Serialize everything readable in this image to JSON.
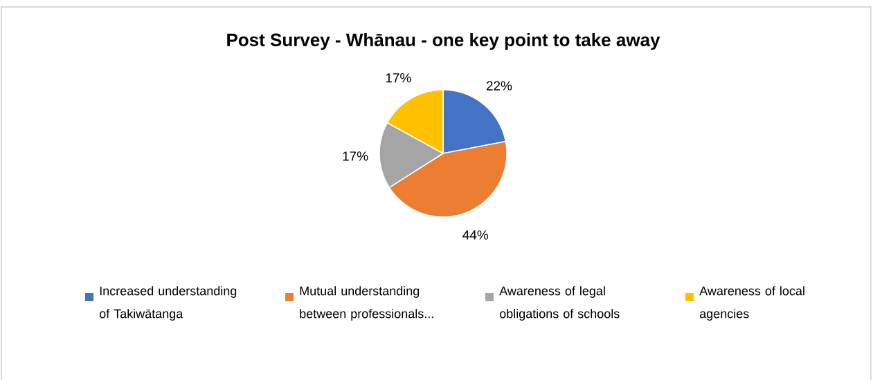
{
  "chart_data": {
    "type": "pie",
    "title": "Post Survey - Whānau - one key point to take away",
    "categories": [
      "Increased understanding of Takiwātanga",
      "Mutual understanding between professionals...",
      "Awareness of legal obligations of schools",
      "Awareness of local agencies"
    ],
    "values": [
      22,
      44,
      17,
      17
    ],
    "value_labels": [
      "22%",
      "44%",
      "17%",
      "17%"
    ],
    "colors": [
      "#4472c4",
      "#ed7d31",
      "#a5a5a5",
      "#ffc000"
    ],
    "legend": "bottom"
  }
}
